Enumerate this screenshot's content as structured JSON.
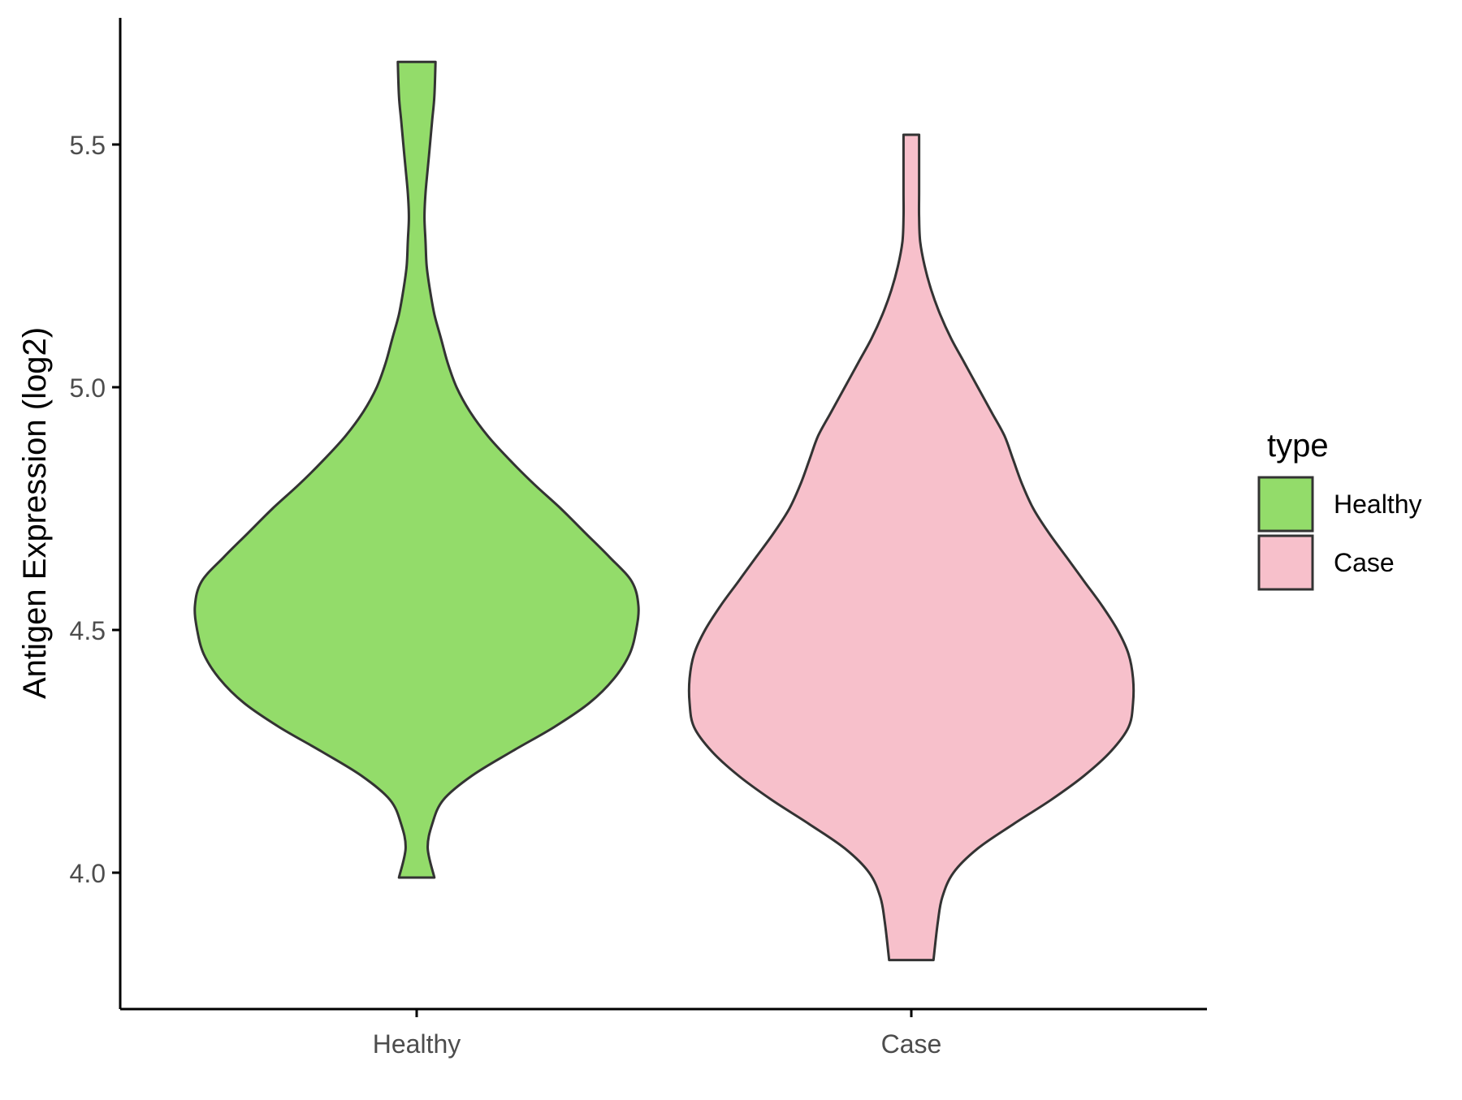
{
  "chart_data": {
    "type": "violin",
    "title": "",
    "xlabel": "",
    "ylabel": "Antigen Expression (log2)",
    "categories": [
      "Healthy",
      "Case"
    ],
    "ylim": [
      3.73,
      5.75
    ],
    "yticks": [
      4.0,
      4.5,
      5.0,
      5.5
    ],
    "ytick_labels": [
      "4.0",
      "4.5",
      "5.0",
      "5.5"
    ],
    "grid": false,
    "legend": {
      "title": "type",
      "position": "right",
      "entries": [
        {
          "label": "Healthy",
          "color": "#93DC6A"
        },
        {
          "label": "Case",
          "color": "#F7C0CB"
        }
      ]
    },
    "outline_color": "#333333",
    "series": [
      {
        "name": "Healthy",
        "color": "#93DC6A",
        "ymin": 3.99,
        "ymax": 5.67,
        "density_profile": [
          [
            3.99,
            0.08
          ],
          [
            4.05,
            0.05
          ],
          [
            4.1,
            0.07
          ],
          [
            4.15,
            0.12
          ],
          [
            4.2,
            0.25
          ],
          [
            4.25,
            0.43
          ],
          [
            4.3,
            0.62
          ],
          [
            4.35,
            0.78
          ],
          [
            4.4,
            0.89
          ],
          [
            4.45,
            0.96
          ],
          [
            4.5,
            0.99
          ],
          [
            4.55,
            1.0
          ],
          [
            4.6,
            0.97
          ],
          [
            4.65,
            0.87
          ],
          [
            4.7,
            0.76
          ],
          [
            4.75,
            0.65
          ],
          [
            4.8,
            0.53
          ],
          [
            4.85,
            0.42
          ],
          [
            4.9,
            0.32
          ],
          [
            4.95,
            0.24
          ],
          [
            5.0,
            0.18
          ],
          [
            5.05,
            0.14
          ],
          [
            5.1,
            0.11
          ],
          [
            5.15,
            0.08
          ],
          [
            5.2,
            0.06
          ],
          [
            5.25,
            0.045
          ],
          [
            5.3,
            0.04
          ],
          [
            5.35,
            0.035
          ],
          [
            5.4,
            0.04
          ],
          [
            5.45,
            0.05
          ],
          [
            5.5,
            0.06
          ],
          [
            5.55,
            0.07
          ],
          [
            5.6,
            0.08
          ],
          [
            5.67,
            0.085
          ]
        ]
      },
      {
        "name": "Case",
        "color": "#F7C0CB",
        "ymin": 3.82,
        "ymax": 5.52,
        "density_profile": [
          [
            3.82,
            0.1
          ],
          [
            3.9,
            0.12
          ],
          [
            3.95,
            0.14
          ],
          [
            4.0,
            0.19
          ],
          [
            4.05,
            0.3
          ],
          [
            4.1,
            0.46
          ],
          [
            4.15,
            0.63
          ],
          [
            4.2,
            0.78
          ],
          [
            4.25,
            0.9
          ],
          [
            4.3,
            0.98
          ],
          [
            4.35,
            1.0
          ],
          [
            4.4,
            1.0
          ],
          [
            4.45,
            0.98
          ],
          [
            4.5,
            0.93
          ],
          [
            4.55,
            0.86
          ],
          [
            4.6,
            0.78
          ],
          [
            4.65,
            0.7
          ],
          [
            4.7,
            0.62
          ],
          [
            4.75,
            0.55
          ],
          [
            4.8,
            0.5
          ],
          [
            4.85,
            0.46
          ],
          [
            4.9,
            0.42
          ],
          [
            4.95,
            0.36
          ],
          [
            5.0,
            0.3
          ],
          [
            5.05,
            0.24
          ],
          [
            5.1,
            0.18
          ],
          [
            5.15,
            0.13
          ],
          [
            5.2,
            0.09
          ],
          [
            5.25,
            0.06
          ],
          [
            5.3,
            0.04
          ],
          [
            5.35,
            0.035
          ],
          [
            5.4,
            0.035
          ],
          [
            5.45,
            0.035
          ],
          [
            5.52,
            0.035
          ]
        ]
      }
    ]
  }
}
